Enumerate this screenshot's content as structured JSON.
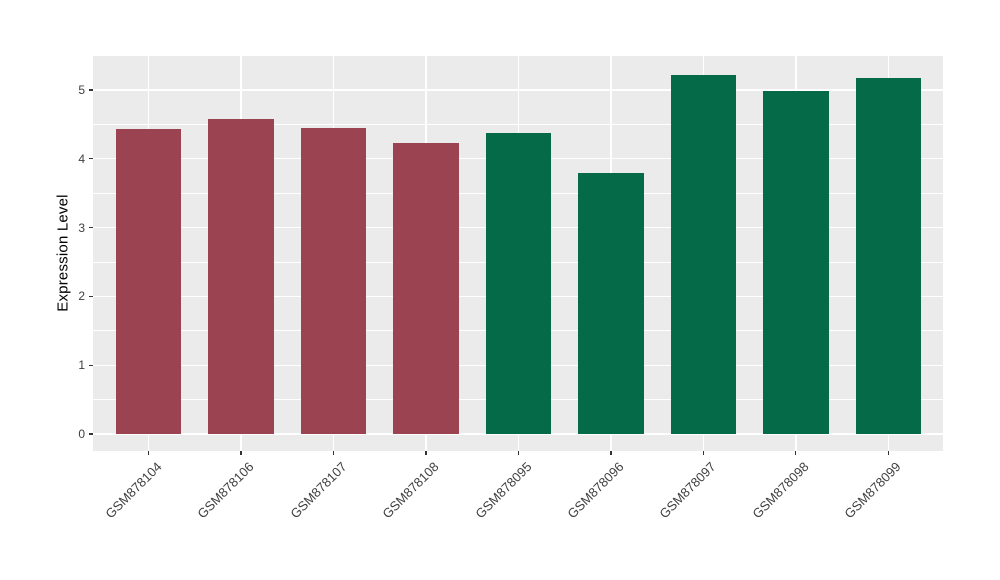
{
  "figure": {
    "background_color": "#FFFFFF",
    "panel_background_color": "#EBEBEB",
    "gridline_color": "#FFFFFF",
    "tick_mark_color": "#333333",
    "axis_text_color": "#404040",
    "axis_title_color": "#000000"
  },
  "chart_data": {
    "type": "bar",
    "title": "",
    "xlabel": "",
    "ylabel": "Expression Level",
    "categories": [
      "GSM878104",
      "GSM878106",
      "GSM878107",
      "GSM878108",
      "GSM878095",
      "GSM878096",
      "GSM878097",
      "GSM878098",
      "GSM878099"
    ],
    "values": [
      4.43,
      4.58,
      4.45,
      4.23,
      4.37,
      3.8,
      5.22,
      4.98,
      5.18
    ],
    "bar_colors": [
      "#9B4351",
      "#9B4351",
      "#9B4351",
      "#9B4351",
      "#046A48",
      "#046A48",
      "#046A48",
      "#046A48",
      "#046A48"
    ],
    "group_colors": {
      "left_group_maroon": "#9B4351",
      "right_group_green": "#046A48"
    },
    "ylim": [
      0,
      5.48
    ],
    "yticks": [
      0,
      1,
      2,
      3,
      4,
      5
    ],
    "x_tick_label_angle_deg": 45,
    "grid": "white major + minor horizontal lines, white major vertical lines at category centers",
    "legend": "none"
  }
}
